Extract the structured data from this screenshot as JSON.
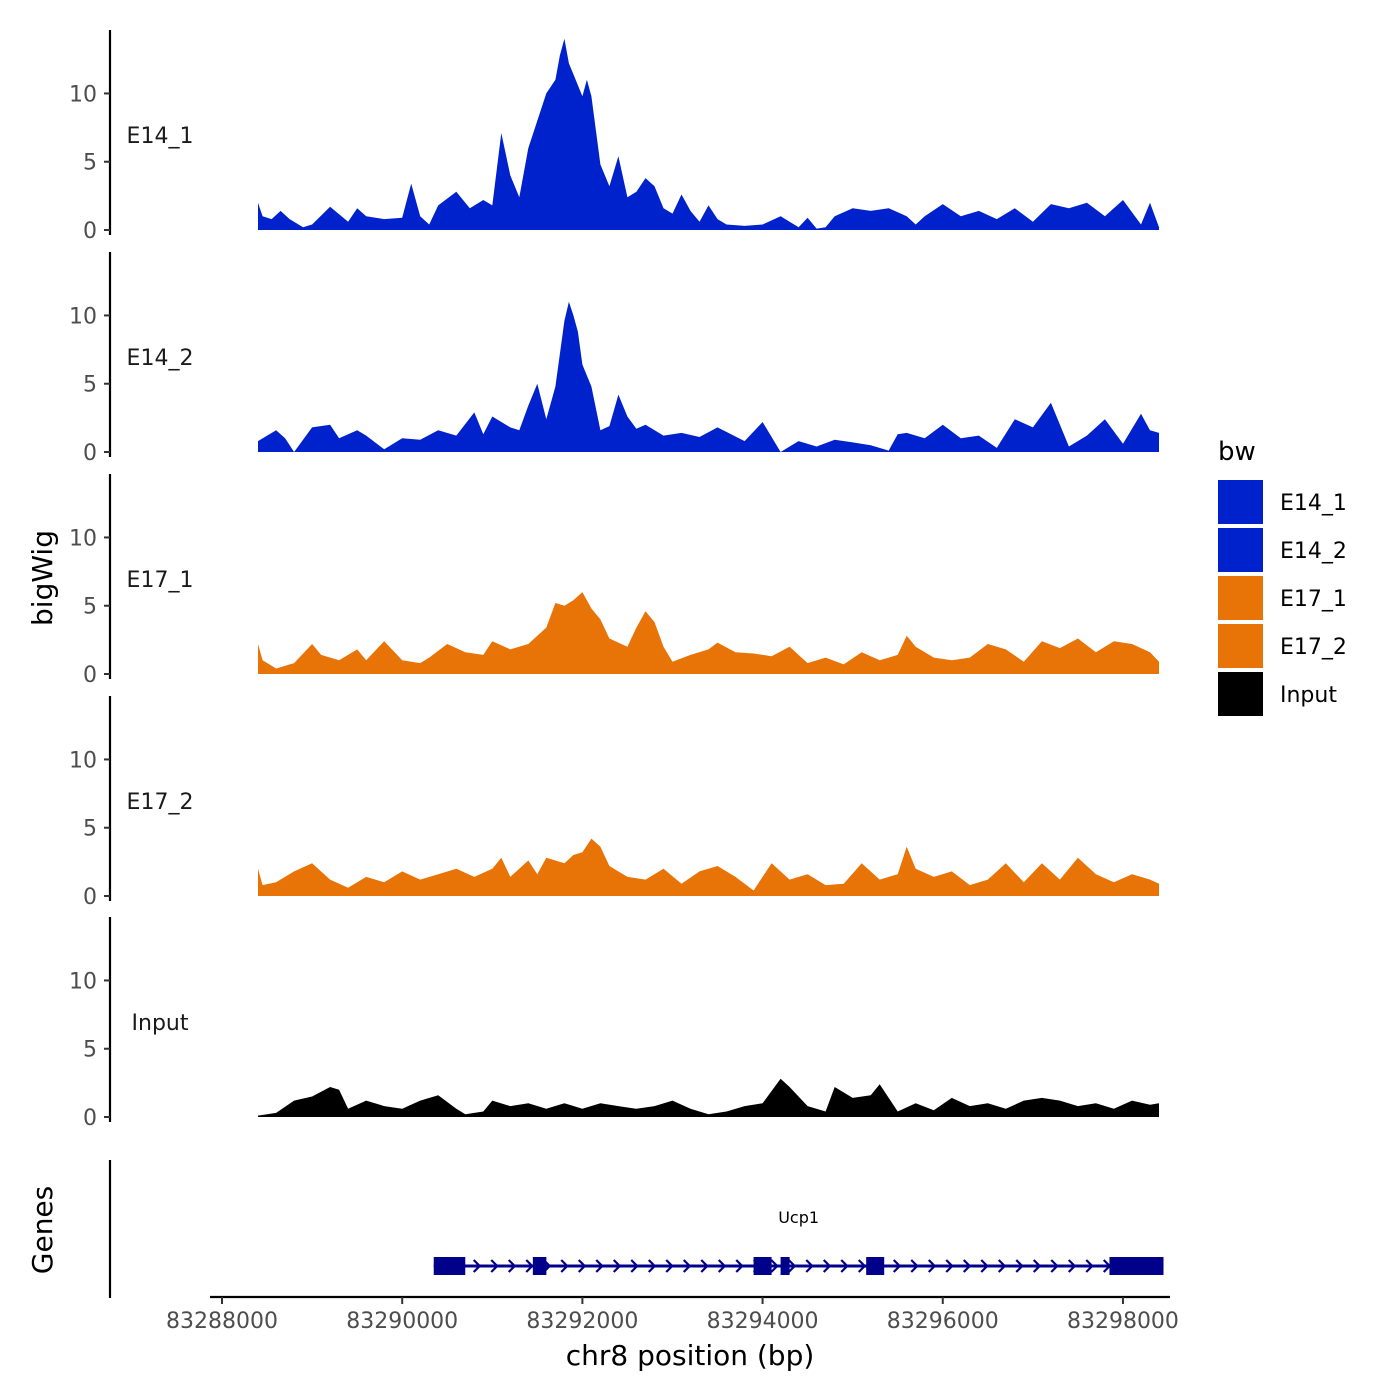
{
  "chart_data": {
    "type": "area",
    "subtype": "genome-browser-tracks",
    "xlabel": "chr8 position (bp)",
    "ylabel": "bigWig",
    "genes_label": "Genes",
    "xlim": [
      83287900,
      83298500
    ],
    "x_ticks": [
      83288000,
      83290000,
      83292000,
      83294000,
      83296000,
      83298000
    ],
    "x_tick_labels": [
      "83288000",
      "83290000",
      "83292000",
      "83294000",
      "83296000",
      "83298000"
    ],
    "ylim": [
      0,
      14.5
    ],
    "y_ticks": [
      0,
      5,
      10
    ],
    "y_tick_labels": [
      "0",
      "5",
      "10"
    ],
    "legend": {
      "title": "bw",
      "entries": [
        {
          "label": "E14_1",
          "color": "#0022CC"
        },
        {
          "label": "E14_2",
          "color": "#0022CC"
        },
        {
          "label": "E17_1",
          "color": "#E87306"
        },
        {
          "label": "E17_2",
          "color": "#E87306"
        },
        {
          "label": "Input",
          "color": "#000000"
        }
      ]
    },
    "series": [
      {
        "name": "E14_1",
        "color": "#0022CC",
        "x": [
          83288400,
          83288450,
          83288550,
          83288650,
          83288750,
          83288900,
          83289000,
          83289200,
          83289400,
          83289500,
          83289600,
          83289800,
          83290000,
          83290100,
          83290200,
          83290300,
          83290400,
          83290600,
          83290750,
          83290900,
          83291000,
          83291100,
          83291200,
          83291300,
          83291400,
          83291500,
          83291600,
          83291700,
          83291750,
          83291800,
          83291850,
          83291900,
          83291950,
          83292000,
          83292050,
          83292100,
          83292200,
          83292300,
          83292400,
          83292500,
          83292600,
          83292700,
          83292800,
          83292900,
          83293000,
          83293100,
          83293200,
          83293300,
          83293400,
          83293500,
          83293600,
          83293800,
          83294000,
          83294200,
          83294400,
          83294500,
          83294600,
          83294700,
          83294800,
          83295000,
          83295200,
          83295400,
          83295600,
          83295700,
          83295800,
          83296000,
          83296200,
          83296400,
          83296600,
          83296800,
          83297000,
          83297200,
          83297400,
          83297600,
          83297800,
          83298000,
          83298200,
          83298300,
          83298400
        ],
        "y": [
          2.0,
          1.0,
          0.8,
          1.4,
          0.8,
          0.2,
          0.4,
          1.7,
          0.6,
          1.6,
          1.0,
          0.8,
          0.9,
          3.4,
          1.0,
          0.4,
          1.8,
          2.8,
          1.6,
          2.2,
          1.8,
          7.1,
          4.0,
          2.4,
          6.0,
          8.0,
          10.0,
          11.0,
          12.8,
          14.0,
          12.2,
          11.4,
          10.6,
          9.8,
          11.0,
          9.8,
          4.8,
          3.2,
          5.4,
          2.4,
          2.8,
          3.8,
          3.2,
          1.6,
          1.2,
          2.6,
          1.4,
          0.6,
          1.8,
          0.8,
          0.4,
          0.3,
          0.4,
          1.0,
          0.2,
          0.9,
          0.1,
          0.2,
          1.0,
          1.6,
          1.4,
          1.6,
          1.0,
          0.4,
          1.0,
          1.9,
          1.0,
          1.4,
          0.8,
          1.6,
          0.6,
          1.9,
          1.6,
          2.0,
          1.0,
          2.2,
          0.4,
          2.0,
          0.2
        ]
      },
      {
        "name": "E14_2",
        "color": "#0022CC",
        "x": [
          83288400,
          83288500,
          83288600,
          83288700,
          83288800,
          83289000,
          83289200,
          83289300,
          83289500,
          83289600,
          83289800,
          83290000,
          83290200,
          83290400,
          83290600,
          83290800,
          83290900,
          83291000,
          83291200,
          83291300,
          83291400,
          83291500,
          83291600,
          83291700,
          83291800,
          83291850,
          83291900,
          83291950,
          83292000,
          83292100,
          83292200,
          83292300,
          83292400,
          83292500,
          83292600,
          83292700,
          83292900,
          83293100,
          83293300,
          83293500,
          83293800,
          83294000,
          83294200,
          83294400,
          83294600,
          83294800,
          83295000,
          83295200,
          83295400,
          83295500,
          83295600,
          83295800,
          83296000,
          83296200,
          83296400,
          83296600,
          83296800,
          83297000,
          83297200,
          83297400,
          83297600,
          83297800,
          83298000,
          83298200,
          83298300,
          83298400
        ],
        "y": [
          0.8,
          1.2,
          1.6,
          1.0,
          0.0,
          1.8,
          2.0,
          1.0,
          1.6,
          1.2,
          0.2,
          1.0,
          0.9,
          1.6,
          1.2,
          2.9,
          1.3,
          2.6,
          1.8,
          1.6,
          3.4,
          5.0,
          2.4,
          4.8,
          9.6,
          11.0,
          10.0,
          8.8,
          6.4,
          4.8,
          1.6,
          1.9,
          4.2,
          2.6,
          1.7,
          2.0,
          1.2,
          1.4,
          1.1,
          1.8,
          0.8,
          2.2,
          0.0,
          0.8,
          0.4,
          0.9,
          0.7,
          0.5,
          0.1,
          1.3,
          1.4,
          1.0,
          2.0,
          1.0,
          1.2,
          0.3,
          2.4,
          1.8,
          3.6,
          0.4,
          1.2,
          2.4,
          0.6,
          2.8,
          1.6,
          1.4
        ]
      },
      {
        "name": "E17_1",
        "color": "#E87306",
        "x": [
          83288400,
          83288450,
          83288600,
          83288800,
          83289000,
          83289100,
          83289300,
          83289500,
          83289600,
          83289800,
          83290000,
          83290200,
          83290300,
          83290500,
          83290700,
          83290900,
          83291000,
          83291200,
          83291400,
          83291600,
          83291700,
          83291800,
          83291900,
          83292000,
          83292100,
          83292200,
          83292300,
          83292500,
          83292600,
          83292700,
          83292800,
          83292900,
          83293000,
          83293200,
          83293400,
          83293500,
          83293700,
          83293900,
          83294100,
          83294300,
          83294500,
          83294700,
          83294900,
          83295100,
          83295300,
          83295500,
          83295600,
          83295700,
          83295900,
          83296100,
          83296300,
          83296500,
          83296700,
          83296900,
          83297100,
          83297300,
          83297500,
          83297700,
          83297900,
          83298100,
          83298300,
          83298400
        ],
        "y": [
          2.2,
          1.0,
          0.4,
          0.8,
          2.2,
          1.4,
          1.0,
          1.8,
          1.0,
          2.4,
          1.0,
          0.8,
          1.2,
          2.2,
          1.6,
          1.4,
          2.4,
          1.8,
          2.2,
          3.4,
          5.2,
          5.0,
          5.4,
          6.0,
          4.8,
          4.0,
          2.6,
          2.0,
          3.4,
          4.6,
          3.8,
          2.0,
          0.9,
          1.4,
          1.8,
          2.3,
          1.6,
          1.5,
          1.3,
          2.0,
          0.8,
          1.2,
          0.7,
          1.6,
          1.0,
          1.4,
          2.8,
          2.0,
          1.2,
          1.0,
          1.2,
          2.2,
          1.8,
          0.9,
          2.4,
          1.9,
          2.6,
          1.6,
          2.4,
          2.2,
          1.6,
          0.9
        ]
      },
      {
        "name": "E17_2",
        "color": "#E87306",
        "x": [
          83288400,
          83288450,
          83288600,
          83288800,
          83289000,
          83289200,
          83289400,
          83289600,
          83289800,
          83290000,
          83290200,
          83290400,
          83290600,
          83290800,
          83291000,
          83291100,
          83291200,
          83291400,
          83291500,
          83291600,
          83291800,
          83291900,
          83292000,
          83292100,
          83292200,
          83292300,
          83292500,
          83292700,
          83292900,
          83293100,
          83293300,
          83293500,
          83293700,
          83293900,
          83294100,
          83294300,
          83294500,
          83294700,
          83294900,
          83295100,
          83295300,
          83295500,
          83295600,
          83295700,
          83295900,
          83296100,
          83296300,
          83296500,
          83296700,
          83296900,
          83297100,
          83297300,
          83297500,
          83297700,
          83297900,
          83298100,
          83298300,
          83298400
        ],
        "y": [
          2.0,
          0.8,
          1.0,
          1.8,
          2.4,
          1.2,
          0.6,
          1.4,
          1.0,
          1.8,
          1.2,
          1.6,
          2.0,
          1.4,
          2.0,
          2.8,
          1.4,
          2.6,
          1.6,
          2.8,
          2.4,
          3.0,
          3.2,
          4.2,
          3.6,
          2.2,
          1.4,
          1.2,
          2.0,
          0.9,
          1.8,
          2.2,
          1.4,
          0.4,
          2.4,
          1.2,
          1.6,
          0.8,
          0.9,
          2.4,
          1.2,
          1.6,
          3.6,
          2.0,
          1.4,
          1.8,
          0.8,
          1.2,
          2.4,
          1.0,
          2.4,
          1.2,
          2.8,
          1.6,
          1.0,
          1.6,
          1.2,
          0.9
        ]
      },
      {
        "name": "Input",
        "color": "#000000",
        "x": [
          83288400,
          83288600,
          83288800,
          83289000,
          83289200,
          83289300,
          83289400,
          83289600,
          83289800,
          83290000,
          83290200,
          83290400,
          83290600,
          83290700,
          83290900,
          83291000,
          83291200,
          83291400,
          83291600,
          83291800,
          83292000,
          83292200,
          83292400,
          83292600,
          83292800,
          83293000,
          83293200,
          83293400,
          83293600,
          83293800,
          83294000,
          83294200,
          83294300,
          83294500,
          83294700,
          83294800,
          83295000,
          83295200,
          83295300,
          83295500,
          83295700,
          83295900,
          83296100,
          83296300,
          83296500,
          83296700,
          83296900,
          83297100,
          83297300,
          83297500,
          83297700,
          83297900,
          83298100,
          83298300,
          83298400
        ],
        "y": [
          0.1,
          0.3,
          1.2,
          1.5,
          2.2,
          2.0,
          0.6,
          1.2,
          0.8,
          0.6,
          1.2,
          1.6,
          0.6,
          0.2,
          0.4,
          1.2,
          0.8,
          1.0,
          0.6,
          1.0,
          0.6,
          1.0,
          0.8,
          0.6,
          0.8,
          1.2,
          0.6,
          0.2,
          0.4,
          0.8,
          1.0,
          2.8,
          2.2,
          0.8,
          0.4,
          2.2,
          1.4,
          1.6,
          2.4,
          0.4,
          1.0,
          0.5,
          1.4,
          0.8,
          1.0,
          0.6,
          1.2,
          1.4,
          1.2,
          0.8,
          1.0,
          0.6,
          1.2,
          0.9,
          1.0
        ]
      }
    ],
    "genes": [
      {
        "name": "Ucp1",
        "start": 83290350,
        "end": 83298450,
        "strand": "+",
        "color": "#00008B",
        "exons": [
          [
            83290350,
            83290700
          ],
          [
            83291450,
            83291600
          ],
          [
            83293900,
            83294100
          ],
          [
            83294200,
            83294300
          ],
          [
            83295150,
            83295350
          ],
          [
            83297850,
            83298450
          ]
        ]
      }
    ]
  }
}
